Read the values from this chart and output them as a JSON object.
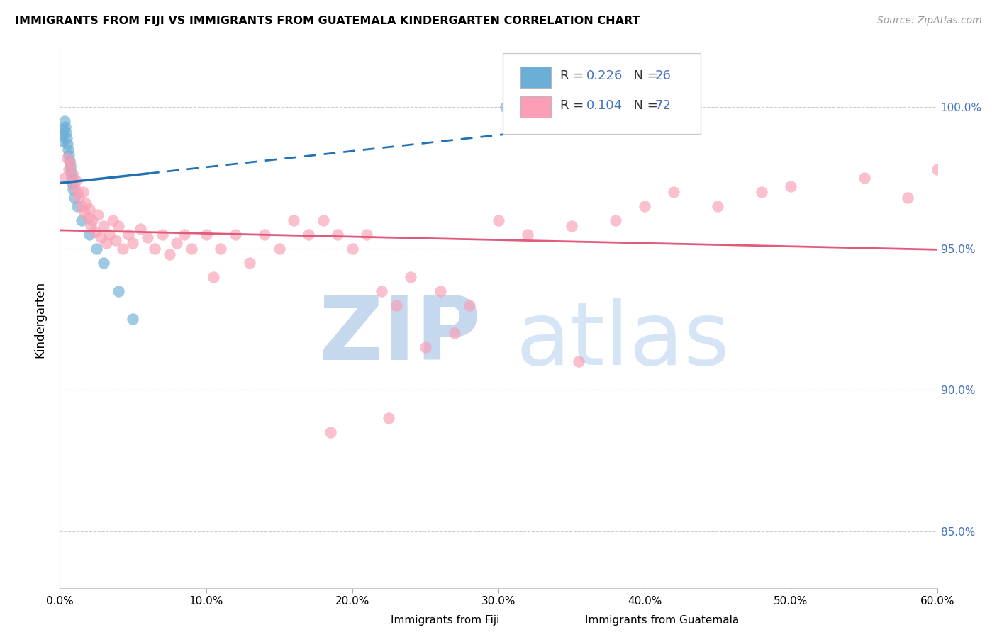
{
  "title": "IMMIGRANTS FROM FIJI VS IMMIGRANTS FROM GUATEMALA KINDERGARTEN CORRELATION CHART",
  "source": "Source: ZipAtlas.com",
  "ylabel": "Kindergarten",
  "xlim": [
    0.0,
    60.0
  ],
  "ylim": [
    83.0,
    102.0
  ],
  "right_yticks": [
    85.0,
    90.0,
    95.0,
    100.0
  ],
  "xticks": [
    0.0,
    10.0,
    20.0,
    30.0,
    40.0,
    50.0,
    60.0
  ],
  "fiji_R": 0.226,
  "fiji_N": 26,
  "guatemala_R": 0.104,
  "guatemala_N": 72,
  "fiji_color": "#6baed6",
  "guatemala_color": "#fa9fb5",
  "fiji_line_color": "#2171b5",
  "guatemala_line_color": "#e05a7a",
  "fiji_x": [
    0.15,
    0.2,
    0.25,
    0.3,
    0.35,
    0.4,
    0.45,
    0.5,
    0.55,
    0.6,
    0.65,
    0.7,
    0.75,
    0.8,
    0.85,
    0.9,
    1.0,
    1.2,
    1.5,
    2.0,
    2.5,
    3.0,
    4.0,
    5.0,
    30.5,
    31.5
  ],
  "fiji_y": [
    98.8,
    99.0,
    99.2,
    99.5,
    99.3,
    99.1,
    98.9,
    98.7,
    98.5,
    98.3,
    98.1,
    97.9,
    97.7,
    97.5,
    97.3,
    97.1,
    96.8,
    96.5,
    96.0,
    95.5,
    95.0,
    94.5,
    93.5,
    92.5,
    100.0,
    100.0
  ],
  "guat_x": [
    0.3,
    0.5,
    0.6,
    0.7,
    0.9,
    1.0,
    1.1,
    1.2,
    1.3,
    1.5,
    1.6,
    1.7,
    1.8,
    1.9,
    2.0,
    2.1,
    2.2,
    2.4,
    2.6,
    2.8,
    3.0,
    3.2,
    3.4,
    3.6,
    3.8,
    4.0,
    4.3,
    4.7,
    5.0,
    5.5,
    6.0,
    6.5,
    7.0,
    7.5,
    8.0,
    8.5,
    9.0,
    10.0,
    11.0,
    12.0,
    13.0,
    14.0,
    15.0,
    16.0,
    17.0,
    18.0,
    19.0,
    20.0,
    21.0,
    22.0,
    23.0,
    24.0,
    25.0,
    26.0,
    27.0,
    28.0,
    30.0,
    32.0,
    35.0,
    38.0,
    40.0,
    42.0,
    45.0,
    48.0,
    50.0,
    55.0,
    58.0,
    60.0,
    10.5,
    18.5,
    22.5,
    35.5
  ],
  "guat_y": [
    97.5,
    98.2,
    97.8,
    98.0,
    97.6,
    97.2,
    97.4,
    97.0,
    96.8,
    96.5,
    97.0,
    96.3,
    96.6,
    96.1,
    96.4,
    95.8,
    96.0,
    95.6,
    96.2,
    95.4,
    95.8,
    95.2,
    95.5,
    96.0,
    95.3,
    95.8,
    95.0,
    95.5,
    95.2,
    95.7,
    95.4,
    95.0,
    95.5,
    94.8,
    95.2,
    95.5,
    95.0,
    95.5,
    95.0,
    95.5,
    94.5,
    95.5,
    95.0,
    96.0,
    95.5,
    96.0,
    95.5,
    95.0,
    95.5,
    93.5,
    93.0,
    94.0,
    91.5,
    93.5,
    92.0,
    93.0,
    96.0,
    95.5,
    95.8,
    96.0,
    96.5,
    97.0,
    96.5,
    97.0,
    97.2,
    97.5,
    96.8,
    97.8,
    94.0,
    88.5,
    89.0,
    91.0
  ]
}
